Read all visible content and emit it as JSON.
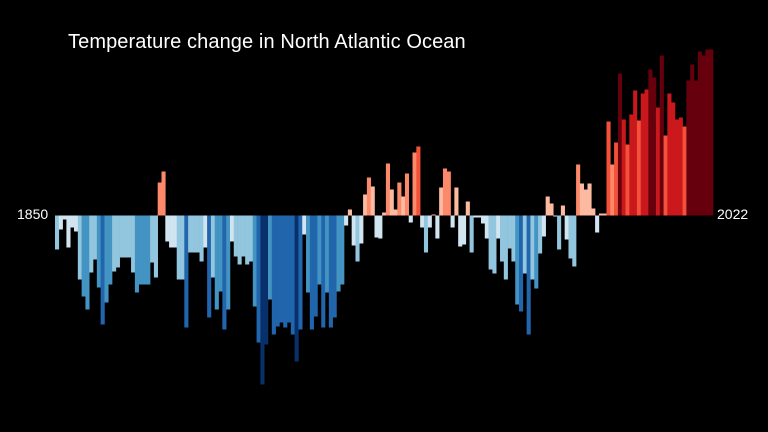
{
  "chart_data": {
    "type": "bar",
    "title": "Temperature change in North Atlantic Ocean",
    "xlabel": "",
    "ylabel": "",
    "x_start": 1850,
    "x_end": 2022,
    "tick_labels": [
      "1850",
      "2022"
    ],
    "ylim": [
      -1.75,
      1.75
    ],
    "grid": false,
    "legend": "none",
    "colormap": {
      "negative": [
        "#d1e5f0",
        "#92c5de",
        "#4393c3",
        "#2166ac",
        "#08306b"
      ],
      "positive": [
        "#fcbba1",
        "#fc8a6a",
        "#f4513a",
        "#cb181d",
        "#67000d"
      ]
    },
    "values": [
      -0.34,
      -0.14,
      -0.04,
      -0.32,
      -0.12,
      -0.16,
      -0.64,
      -0.81,
      -0.94,
      -0.57,
      -0.44,
      -0.72,
      -1.09,
      -0.87,
      -0.69,
      -0.56,
      -0.52,
      -0.42,
      -0.42,
      -0.42,
      -0.57,
      -0.77,
      -0.69,
      -0.69,
      -0.69,
      -0.47,
      -0.62,
      0.33,
      0.44,
      -0.26,
      -0.32,
      -0.32,
      -0.64,
      -0.64,
      -1.12,
      -0.37,
      -0.37,
      -0.37,
      -0.46,
      -0.32,
      -1.02,
      -0.62,
      -0.94,
      -0.76,
      -1.14,
      -0.94,
      -0.26,
      -0.41,
      -0.49,
      -0.41,
      -0.49,
      -0.46,
      -0.91,
      -1.27,
      -1.69,
      -1.29,
      -0.84,
      -1.19,
      -1.11,
      -1.07,
      -1.12,
      -1.07,
      -1.19,
      -1.46,
      -1.14,
      -0.19,
      -0.77,
      -1.14,
      -1.01,
      -0.69,
      -1.12,
      -0.77,
      -1.12,
      -1.02,
      -0.76,
      -0.69,
      -0.1,
      0.06,
      -0.3,
      -0.46,
      -0.28,
      0.21,
      0.38,
      0.29,
      -0.22,
      -0.23,
      0.03,
      0.52,
      0.26,
      0.06,
      0.33,
      0.19,
      0.42,
      -0.07,
      0.63,
      0.69,
      -0.12,
      -0.37,
      -0.12,
      0.01,
      -0.23,
      0.28,
      0.47,
      0.44,
      -0.12,
      0.28,
      -0.31,
      -0.29,
      0.14,
      -0.37,
      -0.02,
      -0.02,
      -0.08,
      -0.23,
      -0.54,
      -0.58,
      -0.23,
      -0.46,
      -0.64,
      -0.33,
      -0.46,
      -0.89,
      -0.96,
      -0.58,
      -1.19,
      -0.64,
      -0.73,
      -0.38,
      -0.21,
      0.19,
      0.12,
      -0.01,
      -0.34,
      0.1,
      -0.24,
      -0.43,
      -0.51,
      0.51,
      0.32,
      0.26,
      0.32,
      0.07,
      -0.17,
      0.02,
      0.02,
      0.94,
      0.51,
      0.73,
      1.42,
      0.96,
      0.71,
      1.01,
      1.25,
      0.95,
      1.22,
      1.26,
      1.46,
      1.38,
      1.08,
      1.6,
      0.8,
      1.22,
      1.13,
      0.96,
      0.98,
      0.89,
      1.35,
      1.51,
      1.35,
      1.64,
      1.6,
      1.66,
      1.66
    ]
  }
}
